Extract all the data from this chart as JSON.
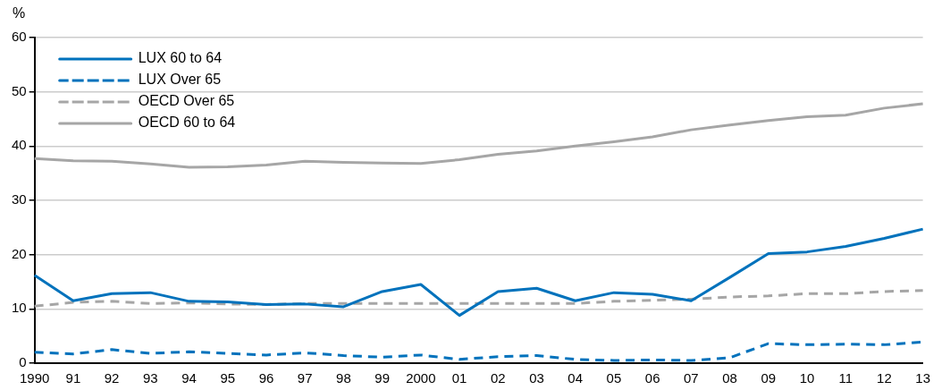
{
  "chart_data": {
    "type": "line",
    "ylabel": "%",
    "categories": [
      "1990",
      "91",
      "92",
      "93",
      "94",
      "95",
      "96",
      "97",
      "98",
      "99",
      "2000",
      "01",
      "02",
      "03",
      "04",
      "05",
      "06",
      "07",
      "08",
      "09",
      "10",
      "11",
      "12",
      "13"
    ],
    "series": [
      {
        "name": "LUX 60 to 64",
        "color": "#0072bc",
        "line_style": "solid",
        "values": [
          16.2,
          11.5,
          12.8,
          13.0,
          11.4,
          11.3,
          10.8,
          10.9,
          10.4,
          13.2,
          14.5,
          8.8,
          13.2,
          13.8,
          11.5,
          13.0,
          12.7,
          11.5,
          15.8,
          20.2,
          20.5,
          21.5,
          23.0,
          24.7
        ]
      },
      {
        "name": "LUX Over 65",
        "color": "#0072bc",
        "line_style": "dashed",
        "values": [
          2.0,
          1.7,
          2.5,
          1.8,
          2.1,
          1.8,
          1.5,
          1.9,
          1.4,
          1.1,
          1.5,
          0.7,
          1.2,
          1.4,
          0.7,
          0.5,
          0.6,
          0.5,
          1.0,
          3.6,
          3.4,
          3.5,
          3.4,
          3.9
        ]
      },
      {
        "name": "OECD Over 65",
        "color": "#a6a6a6",
        "line_style": "dashed",
        "values": [
          10.5,
          11.2,
          11.4,
          11.0,
          11.1,
          10.9,
          10.8,
          11.0,
          11.0,
          11.0,
          11.0,
          11.0,
          11.0,
          11.0,
          11.0,
          11.4,
          11.6,
          11.8,
          12.2,
          12.4,
          12.8,
          12.8,
          13.2,
          13.4
        ]
      },
      {
        "name": "OECD 60 to 64",
        "color": "#a6a6a6",
        "line_style": "solid",
        "values": [
          37.7,
          37.3,
          37.2,
          36.7,
          36.1,
          36.2,
          36.5,
          37.2,
          37.0,
          36.9,
          36.8,
          37.5,
          38.5,
          39.1,
          40.0,
          40.8,
          41.7,
          43.0,
          43.9,
          44.7,
          45.4,
          45.7,
          47.0,
          47.8
        ]
      }
    ],
    "ylim": [
      0,
      60
    ],
    "yticks": [
      0,
      10,
      20,
      30,
      40,
      50,
      60
    ],
    "grid": "y",
    "legend": "top left",
    "marker": "none"
  }
}
